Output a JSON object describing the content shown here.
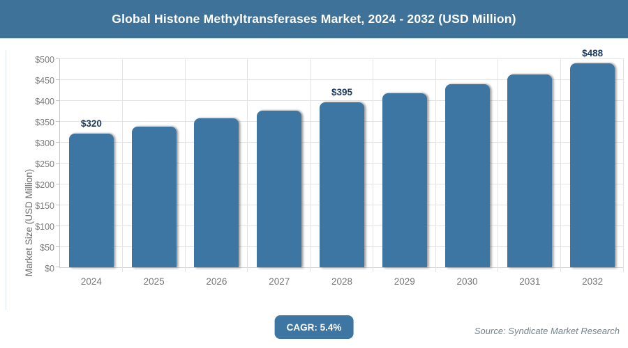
{
  "header": {
    "title": "Global Histone Methyltransferases Market, 2024 - 2032 (USD Million)",
    "bg_color": "#3e7299",
    "text_color": "#ffffff"
  },
  "chart_data": {
    "type": "bar",
    "title": "Global Histone Methyltransferases Market, 2024 - 2032 (USD Million)",
    "categories": [
      "2024",
      "2025",
      "2026",
      "2027",
      "2028",
      "2029",
      "2030",
      "2031",
      "2032"
    ],
    "values": [
      320,
      337,
      356,
      375,
      395,
      416,
      439,
      462,
      488
    ],
    "point_labels": [
      "$320",
      null,
      null,
      null,
      "$395",
      null,
      null,
      null,
      "$488"
    ],
    "xlabel": "",
    "ylabel": "Market Size (USD Million)",
    "ylim": [
      0,
      500
    ],
    "y_tick_step": 50,
    "y_tick_labels": [
      "$0",
      "$50",
      "$100",
      "$150",
      "$200",
      "$250",
      "$300",
      "$350",
      "$400",
      "$450",
      "$500"
    ],
    "grid": true,
    "legend": "none",
    "bar_color": "#3d76a2",
    "point_label_color": "#1d3a5e",
    "gridline_color": "#e3e3e3"
  },
  "footer": {
    "cagr_label": "CAGR: 5.4%",
    "source": "Source: Syndicate Market Research"
  }
}
